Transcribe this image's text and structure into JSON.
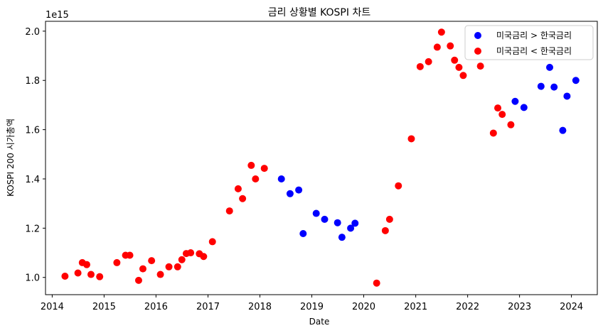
{
  "chart_data": {
    "type": "scatter",
    "title": "금리 상황별 KOSPI 차트",
    "xlabel": "Date",
    "ylabel": "KOSPI 200 시가총액",
    "y_offset_label": "1e15",
    "xlim": [
      "2013-11-15",
      "2024-07-01"
    ],
    "ylim": [
      0.93,
      2.04
    ],
    "x_ticks": [
      "2014",
      "2015",
      "2016",
      "2017",
      "2018",
      "2019",
      "2020",
      "2021",
      "2022",
      "2023",
      "2024"
    ],
    "y_ticks": [
      "1.0",
      "1.2",
      "1.4",
      "1.6",
      "1.8",
      "2.0"
    ],
    "y_tick_values": [
      1.0,
      1.2,
      1.4,
      1.6,
      1.8,
      2.0
    ],
    "legend_position": "top-right",
    "grid": false,
    "series": [
      {
        "name": "미국금리 > 한국금리",
        "color": "#0000ff",
        "points": [
          [
            "2018-06-01",
            1.4
          ],
          [
            "2018-08-01",
            1.34
          ],
          [
            "2018-10-01",
            1.355
          ],
          [
            "2018-11-01",
            1.178
          ],
          [
            "2019-02-01",
            1.26
          ],
          [
            "2019-04-01",
            1.236
          ],
          [
            "2019-07-01",
            1.222
          ],
          [
            "2019-08-01",
            1.163
          ],
          [
            "2019-10-01",
            1.2
          ],
          [
            "2019-11-01",
            1.22
          ],
          [
            "2022-12-01",
            1.715
          ],
          [
            "2023-02-01",
            1.69
          ],
          [
            "2023-06-01",
            1.776
          ],
          [
            "2023-08-01",
            1.853
          ],
          [
            "2023-09-01",
            1.773
          ],
          [
            "2023-11-01",
            1.597
          ],
          [
            "2023-12-01",
            1.736
          ],
          [
            "2024-02-01",
            1.8
          ]
        ]
      },
      {
        "name": "미국금리 < 한국금리",
        "color": "#ff0000",
        "points": [
          [
            "2014-04-01",
            1.005
          ],
          [
            "2014-07-01",
            1.018
          ],
          [
            "2014-08-01",
            1.06
          ],
          [
            "2014-09-01",
            1.052
          ],
          [
            "2014-10-01",
            1.012
          ],
          [
            "2014-12-01",
            1.003
          ],
          [
            "2015-04-01",
            1.06
          ],
          [
            "2015-06-01",
            1.09
          ],
          [
            "2015-07-01",
            1.09
          ],
          [
            "2015-09-01",
            0.988
          ],
          [
            "2015-10-01",
            1.035
          ],
          [
            "2015-12-01",
            1.068
          ],
          [
            "2016-02-01",
            1.012
          ],
          [
            "2016-04-01",
            1.043
          ],
          [
            "2016-06-01",
            1.043
          ],
          [
            "2016-07-01",
            1.072
          ],
          [
            "2016-08-01",
            1.097
          ],
          [
            "2016-09-01",
            1.1
          ],
          [
            "2016-11-01",
            1.096
          ],
          [
            "2016-12-01",
            1.085
          ],
          [
            "2017-02-01",
            1.145
          ],
          [
            "2017-06-01",
            1.27
          ],
          [
            "2017-08-01",
            1.36
          ],
          [
            "2017-09-01",
            1.32
          ],
          [
            "2017-11-01",
            1.455
          ],
          [
            "2017-12-01",
            1.4
          ],
          [
            "2018-02-01",
            1.443
          ],
          [
            "2020-04-01",
            0.977
          ],
          [
            "2020-06-01",
            1.19
          ],
          [
            "2020-07-01",
            1.236
          ],
          [
            "2020-09-01",
            1.372
          ],
          [
            "2020-12-01",
            1.563
          ],
          [
            "2021-02-01",
            1.856
          ],
          [
            "2021-04-01",
            1.876
          ],
          [
            "2021-06-01",
            1.935
          ],
          [
            "2021-07-01",
            1.996
          ],
          [
            "2021-09-01",
            1.94
          ],
          [
            "2021-10-01",
            1.882
          ],
          [
            "2021-11-01",
            1.853
          ],
          [
            "2021-12-01",
            1.82
          ],
          [
            "2022-04-01",
            1.858
          ],
          [
            "2022-07-01",
            1.586
          ],
          [
            "2022-08-01",
            1.688
          ],
          [
            "2022-09-01",
            1.662
          ],
          [
            "2022-11-01",
            1.62
          ]
        ]
      }
    ]
  }
}
